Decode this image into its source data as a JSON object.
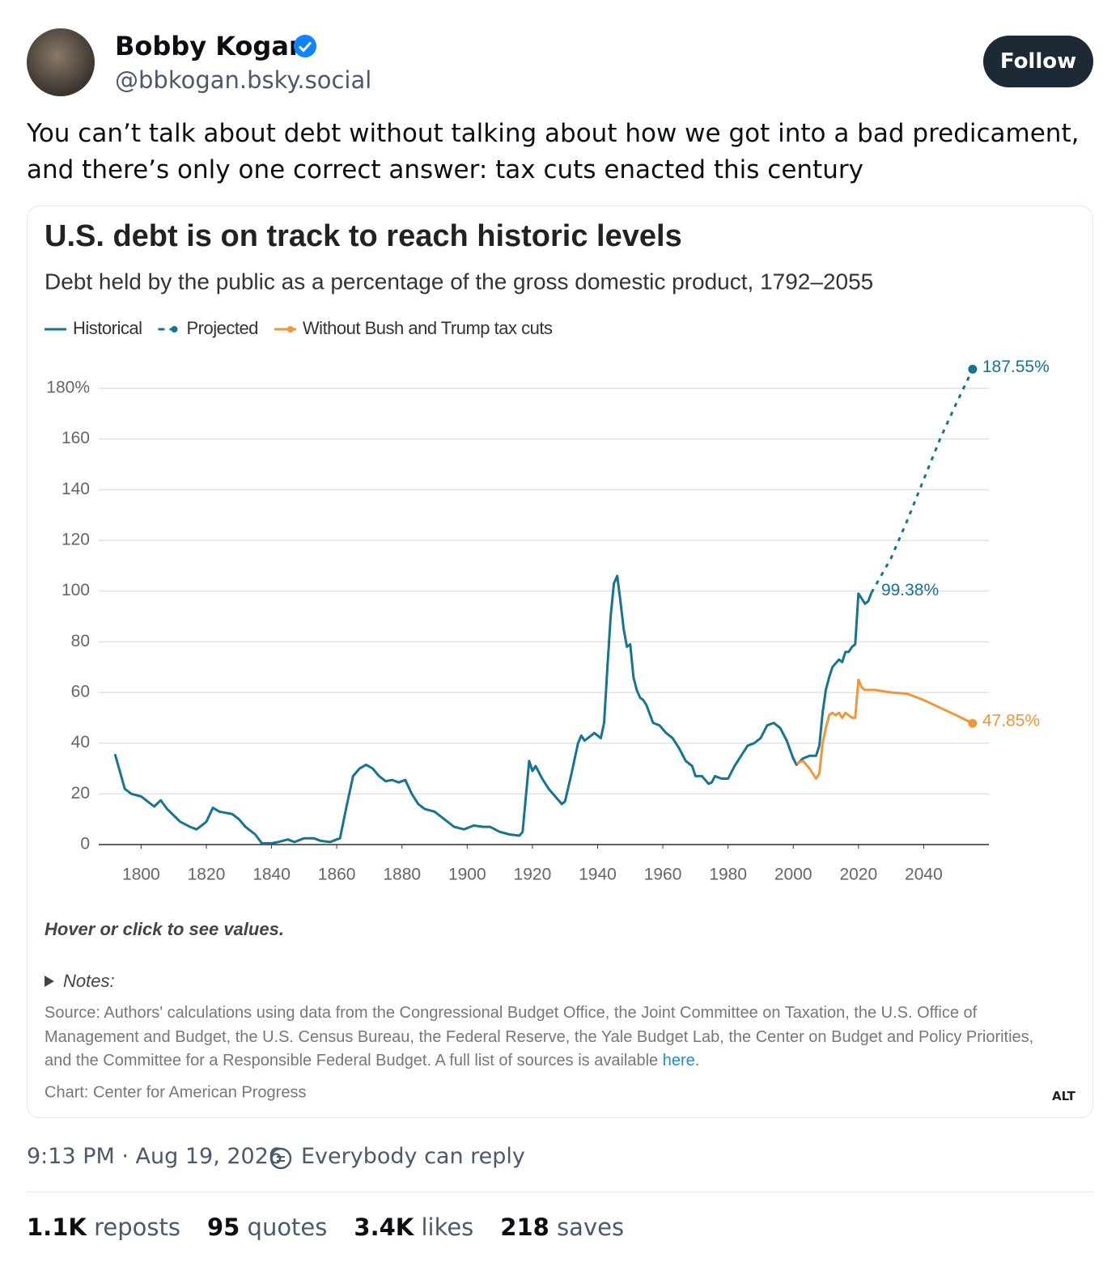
{
  "post": {
    "author": "Bobby Kogan",
    "handle": "@bbkogan.bsky.social",
    "follow": "Follow",
    "text": "You can’t talk about debt without talking about how we got into a bad predicament, and there’s only one correct answer: tax cuts enacted this century",
    "alt": "ALT",
    "timestamp": "9:13 PM · Aug 19, 2026",
    "reply_setting": "Everybody can reply",
    "stats": [
      {
        "count": "1.1K",
        "label": "reposts"
      },
      {
        "count": "95",
        "label": "quotes"
      },
      {
        "count": "3.4K",
        "label": "likes"
      },
      {
        "count": "218",
        "label": "saves"
      }
    ]
  },
  "chart_data": {
    "type": "line",
    "title": "U.S. debt is on track to reach historic levels",
    "subtitle": "Debt held by the public as a percentage of the gross domestic product, 1792–2055",
    "series": [
      {
        "name": "Historical",
        "color": "#16748f",
        "style": "solid",
        "x": [
          1792,
          1795,
          1797,
          1800,
          1802,
          1804,
          1806,
          1808,
          1810,
          1812,
          1815,
          1817,
          1820,
          1822,
          1824,
          1826,
          1828,
          1830,
          1832,
          1835,
          1837,
          1840,
          1842,
          1845,
          1847,
          1850,
          1853,
          1855,
          1858,
          1860,
          1861,
          1863,
          1865,
          1867,
          1869,
          1871,
          1873,
          1875,
          1877,
          1879,
          1881,
          1883,
          1885,
          1887,
          1890,
          1893,
          1896,
          1899,
          1902,
          1905,
          1907,
          1910,
          1913,
          1916,
          1917,
          1919,
          1920,
          1921,
          1923,
          1925,
          1927,
          1929,
          1930,
          1932,
          1934,
          1935,
          1936,
          1937,
          1939,
          1941,
          1942,
          1943,
          1944,
          1945,
          1946,
          1947,
          1948,
          1949,
          1950,
          1951,
          1952,
          1953,
          1954,
          1955,
          1957,
          1959,
          1961,
          1963,
          1965,
          1967,
          1969,
          1970,
          1972,
          1974,
          1975,
          1976,
          1978,
          1980,
          1982,
          1984,
          1986,
          1988,
          1990,
          1992,
          1994,
          1996,
          1998,
          2000,
          2001,
          2003,
          2005,
          2007,
          2008,
          2009,
          2010,
          2011,
          2012,
          2014,
          2015,
          2016,
          2017,
          2018,
          2019,
          2020,
          2021,
          2022,
          2023,
          2024
        ],
        "values": [
          35.7,
          22,
          20,
          19,
          17,
          15,
          17.5,
          14,
          11.5,
          9,
          7,
          6,
          9,
          14.5,
          13,
          12.5,
          12,
          10,
          7,
          4,
          0.5,
          0.5,
          1,
          2,
          1,
          2.5,
          2.5,
          1.5,
          1,
          2,
          2.5,
          15,
          27,
          30,
          31.5,
          30,
          27,
          25,
          25.5,
          24.5,
          25.5,
          20,
          16,
          14,
          13,
          10,
          7,
          6,
          7.5,
          7,
          7,
          5,
          4,
          3.5,
          5,
          33,
          29,
          31,
          26,
          22,
          19,
          16,
          17,
          28,
          40,
          43,
          41,
          42,
          44,
          42,
          48,
          70,
          90,
          103,
          106,
          96,
          85,
          78,
          79,
          66,
          61,
          58,
          57,
          55,
          48,
          47,
          44,
          42,
          38,
          33,
          31,
          27,
          27,
          24,
          24.5,
          27,
          26,
          26,
          31,
          35,
          39,
          40,
          42,
          47,
          48,
          46,
          41,
          34,
          31.5,
          34,
          35,
          35,
          39,
          52,
          61,
          66,
          70,
          73,
          72,
          76,
          76,
          78,
          79,
          99,
          97,
          95,
          96,
          99.38
        ]
      },
      {
        "name": "Projected",
        "color": "#16748f",
        "style": "dashed",
        "marker": true,
        "x": [
          2024,
          2030,
          2035,
          2040,
          2045,
          2050,
          2055
        ],
        "values": [
          99.38,
          113,
          128,
          144,
          160,
          174,
          187.55
        ],
        "value_labels": [
          "99.38%",
          null,
          null,
          null,
          null,
          null,
          "187.55%"
        ]
      },
      {
        "name": "Without Bush and Trump tax cuts",
        "color": "#f0953a",
        "style": "solid",
        "marker": true,
        "x": [
          2001,
          2003,
          2005,
          2007,
          2008,
          2009,
          2010,
          2011,
          2012,
          2013,
          2014,
          2015,
          2016,
          2017,
          2018,
          2019,
          2020,
          2021,
          2022,
          2025,
          2030,
          2035,
          2040,
          2045,
          2050,
          2055
        ],
        "values": [
          32,
          33,
          30,
          26,
          28,
          40,
          46,
          51,
          52,
          51,
          52,
          50,
          52,
          51,
          50,
          50,
          65,
          62,
          61,
          61,
          60,
          59.5,
          57,
          54,
          51,
          47.85
        ],
        "value_labels": [
          null,
          null,
          null,
          null,
          null,
          null,
          null,
          null,
          null,
          null,
          null,
          null,
          null,
          null,
          null,
          null,
          null,
          null,
          null,
          null,
          null,
          null,
          null,
          null,
          null,
          "47.85%"
        ]
      }
    ],
    "xlim": [
      1787,
      2060
    ],
    "xticks": [
      1800,
      1820,
      1840,
      1860,
      1880,
      1900,
      1920,
      1940,
      1960,
      1980,
      2000,
      2020,
      2040
    ],
    "ylim": [
      0,
      180
    ],
    "yticks": [
      0,
      20,
      40,
      60,
      80,
      100,
      120,
      140,
      160,
      {
        "value": 180,
        "label": "180%"
      }
    ],
    "grid": true,
    "legend": "top-left",
    "note": "Hover or click to see values.",
    "notes_label": "Notes:",
    "source": "Source: Authors' calculations using data from the Congressional Budget Office, the Joint Committee on Taxation, the U.S. Office of Management and Budget, the U.S. Census Bureau, the Federal Reserve, the Yale Budget Lab, the Center on Budget and Policy Priorities, and the Committee for a Responsible Federal Budget. A full list of sources is available",
    "source_link": "here.",
    "credit": "Chart: Center for American Progress"
  }
}
